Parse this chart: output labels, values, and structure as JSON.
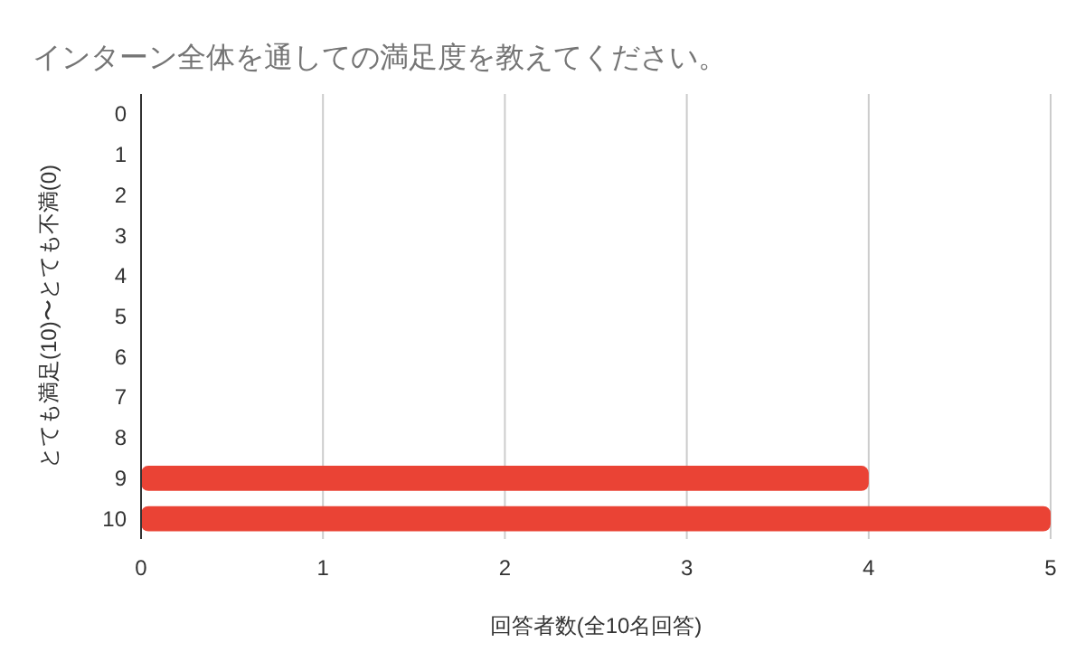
{
  "chart_data": {
    "type": "bar",
    "orientation": "horizontal",
    "title": "インターン全体を通しての満足度を教えてください。",
    "xlabel": "回答者数(全10名回答)",
    "ylabel": "とても満足(10)〜とても不満(0)",
    "categories": [
      "0",
      "1",
      "2",
      "3",
      "4",
      "5",
      "6",
      "7",
      "8",
      "9",
      "10"
    ],
    "values": [
      0,
      0,
      0,
      0,
      0,
      0,
      0,
      0,
      0,
      4,
      5
    ],
    "color": "#ea4335",
    "xlim": [
      0,
      5
    ],
    "xticks": [
      0,
      1,
      2,
      3,
      4,
      5
    ],
    "grid": "x"
  }
}
